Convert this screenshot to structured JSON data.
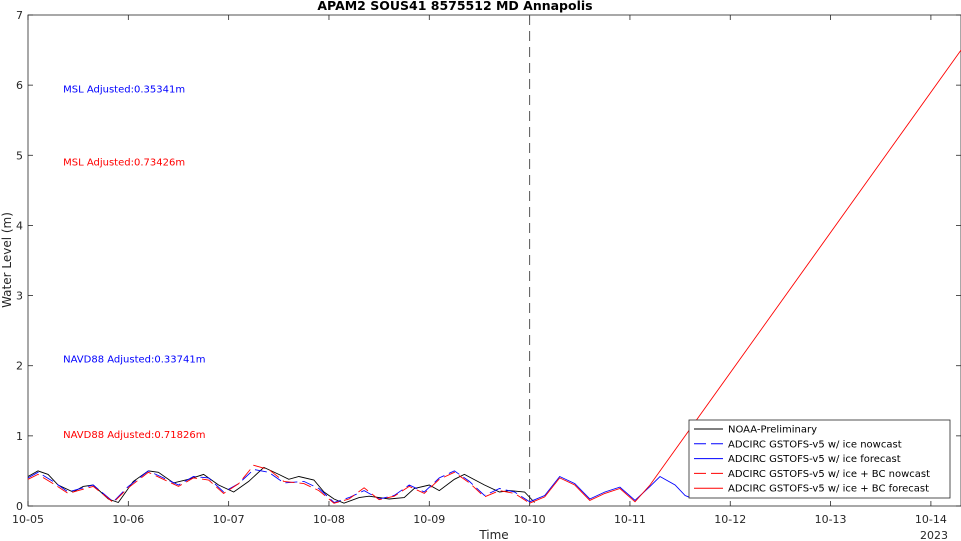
{
  "chart_data": {
    "type": "line",
    "title": "APAM2 SOUS41 8575512 MD Annapolis",
    "xlabel": "Time",
    "ylabel": "Water Level (m)",
    "xlim": [
      0,
      9.3
    ],
    "ylim": [
      0,
      7
    ],
    "x_ticks": [
      {
        "x": 0,
        "label": "10-05"
      },
      {
        "x": 1,
        "label": "10-06"
      },
      {
        "x": 2,
        "label": "10-07"
      },
      {
        "x": 3,
        "label": "10-08"
      },
      {
        "x": 4,
        "label": "10-09"
      },
      {
        "x": 5,
        "label": "10-10"
      },
      {
        "x": 6,
        "label": "10-11"
      },
      {
        "x": 7,
        "label": "10-12"
      },
      {
        "x": 8,
        "label": "10-13"
      },
      {
        "x": 9,
        "label": "10-14"
      }
    ],
    "x_year_label": "2023",
    "y_ticks": [
      0,
      1,
      2,
      3,
      4,
      5,
      6,
      7
    ],
    "x_unit": "days since 10-05 00:00",
    "nowcast_divider_x": 5,
    "grid": false,
    "legend_position": "bottom-right",
    "annotations": [
      {
        "text": "MSL Adjusted:0.35341m",
        "x": 0.35,
        "y": 5.95,
        "color": "#0000ff"
      },
      {
        "text": "MSL Adjusted:0.73426m",
        "x": 0.35,
        "y": 4.91,
        "color": "#ff0000"
      },
      {
        "text": "NAVD88 Adjusted:0.33741m",
        "x": 0.35,
        "y": 2.1,
        "color": "#0000ff"
      },
      {
        "text": "NAVD88 Adjusted:0.71826m",
        "x": 0.35,
        "y": 1.03,
        "color": "#ff0000"
      }
    ],
    "series": [
      {
        "name": "NOAA-Preliminary",
        "color": "#000000",
        "dash": "solid",
        "x": [
          0,
          0.1,
          0.2,
          0.3,
          0.45,
          0.55,
          0.65,
          0.8,
          0.9,
          1.05,
          1.2,
          1.3,
          1.45,
          1.6,
          1.75,
          1.9,
          2.05,
          2.2,
          2.35,
          2.5,
          2.6,
          2.7,
          2.85,
          2.95,
          3.05,
          3.15,
          3.3,
          3.4,
          3.6,
          3.75,
          3.85,
          4.0,
          4.1,
          4.25,
          4.35,
          4.55,
          4.7,
          4.8,
          4.95,
          5.05
        ],
        "values": [
          0.42,
          0.5,
          0.45,
          0.3,
          0.2,
          0.28,
          0.3,
          0.1,
          0.05,
          0.35,
          0.5,
          0.48,
          0.33,
          0.38,
          0.45,
          0.3,
          0.2,
          0.35,
          0.55,
          0.45,
          0.38,
          0.42,
          0.37,
          0.2,
          0.1,
          0.04,
          0.12,
          0.14,
          0.1,
          0.12,
          0.25,
          0.3,
          0.22,
          0.38,
          0.45,
          0.3,
          0.2,
          0.22,
          0.2,
          0.05
        ]
      },
      {
        "name": "ADCIRC GSTOFS-v5 w/ ice nowcast",
        "color": "#0000ff",
        "dash": "long",
        "x": [
          0,
          0.1,
          0.25,
          0.4,
          0.5,
          0.65,
          0.85,
          1.0,
          1.2,
          1.35,
          1.5,
          1.65,
          1.8,
          1.95,
          2.1,
          2.25,
          2.4,
          2.55,
          2.75,
          2.9,
          3.05,
          3.2,
          3.35,
          3.5,
          3.65,
          3.8,
          3.95,
          4.1,
          4.25,
          4.4,
          4.55,
          4.7,
          4.85,
          5.0
        ],
        "values": [
          0.4,
          0.48,
          0.35,
          0.2,
          0.24,
          0.3,
          0.06,
          0.28,
          0.5,
          0.4,
          0.3,
          0.42,
          0.4,
          0.2,
          0.32,
          0.52,
          0.48,
          0.33,
          0.35,
          0.25,
          0.05,
          0.12,
          0.22,
          0.1,
          0.15,
          0.3,
          0.2,
          0.4,
          0.5,
          0.35,
          0.15,
          0.25,
          0.2,
          0.06
        ]
      },
      {
        "name": "ADCIRC GSTOFS-v5 w/ ice forecast",
        "color": "#0000ff",
        "dash": "solid",
        "x": [
          5.0,
          5.15,
          5.3,
          5.45,
          5.6,
          5.75,
          5.9,
          6.05,
          6.2,
          6.3,
          6.45,
          6.55,
          6.6
        ],
        "values": [
          0.06,
          0.15,
          0.42,
          0.32,
          0.1,
          0.2,
          0.27,
          0.08,
          0.28,
          0.42,
          0.3,
          0.15,
          0.12
        ]
      },
      {
        "name": "ADCIRC GSTOFS-v5 w/ ice + BC nowcast",
        "color": "#ff0000",
        "dash": "long",
        "x": [
          0,
          0.1,
          0.25,
          0.4,
          0.5,
          0.65,
          0.85,
          1.0,
          1.2,
          1.35,
          1.5,
          1.65,
          1.8,
          1.95,
          2.1,
          2.25,
          2.4,
          2.55,
          2.75,
          2.9,
          3.05,
          3.2,
          3.35,
          3.5,
          3.65,
          3.8,
          3.95,
          4.1,
          4.25,
          4.4,
          4.55,
          4.7,
          4.85,
          5.0
        ],
        "values": [
          0.38,
          0.45,
          0.32,
          0.18,
          0.22,
          0.28,
          0.05,
          0.26,
          0.48,
          0.38,
          0.28,
          0.4,
          0.37,
          0.18,
          0.32,
          0.58,
          0.52,
          0.35,
          0.32,
          0.22,
          0.04,
          0.1,
          0.26,
          0.09,
          0.14,
          0.28,
          0.18,
          0.38,
          0.48,
          0.33,
          0.13,
          0.22,
          0.18,
          0.04
        ]
      },
      {
        "name": "ADCIRC GSTOFS-v5 w/ ice + BC forecast",
        "color": "#ff0000",
        "dash": "solid",
        "x": [
          5.0,
          5.15,
          5.3,
          5.45,
          5.6,
          5.75,
          5.9,
          6.05,
          6.2,
          9.3
        ],
        "values": [
          0.04,
          0.13,
          0.4,
          0.3,
          0.08,
          0.18,
          0.25,
          0.06,
          0.3,
          6.5
        ]
      }
    ]
  }
}
